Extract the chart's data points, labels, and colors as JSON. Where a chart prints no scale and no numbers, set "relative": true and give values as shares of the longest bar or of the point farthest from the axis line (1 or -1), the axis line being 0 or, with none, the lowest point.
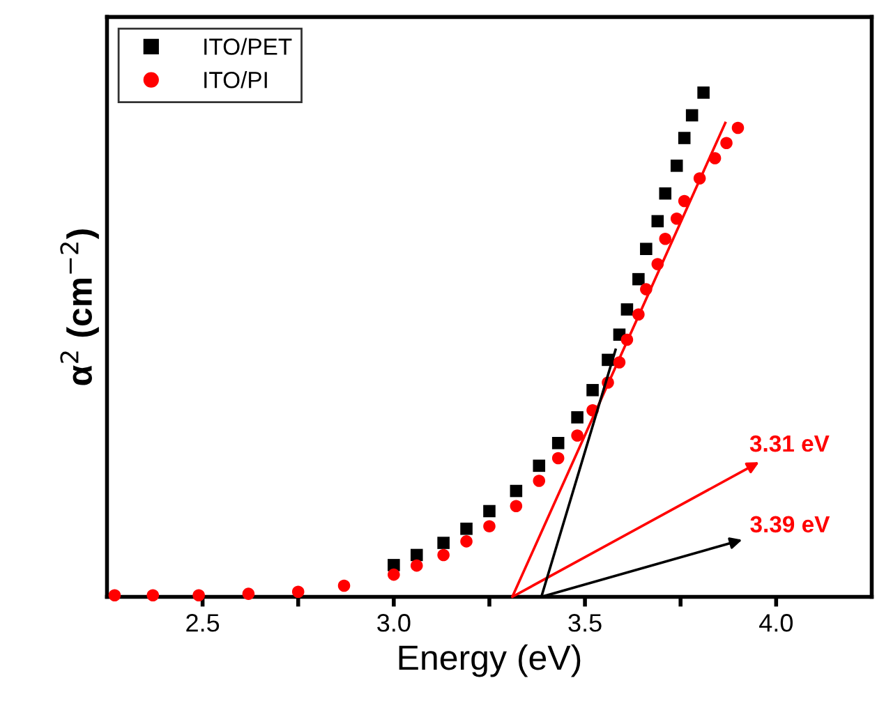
{
  "chart_data": {
    "type": "scatter",
    "xlabel": "Energy (eV)",
    "ylabel": "α$^{2}$ (cm$^{−2}$)",
    "relative": true,
    "xlim": [
      2.25,
      4.25
    ],
    "xticks": [
      {
        "value": 2.5,
        "label": "2.5"
      },
      {
        "value": 2.75,
        "label": null
      },
      {
        "value": 3.0,
        "label": "3.0"
      },
      {
        "value": 3.25,
        "label": null
      },
      {
        "value": 3.5,
        "label": "3.5"
      },
      {
        "value": 3.75,
        "label": null
      },
      {
        "value": 4.0,
        "label": "4.0"
      }
    ],
    "tick_labels": "x",
    "legend": "top left",
    "grid": false,
    "series": [
      {
        "name": "ITO/PET",
        "color": "#000000",
        "marker": "square",
        "x": [
          3.0,
          3.06,
          3.13,
          3.19,
          3.25,
          3.32,
          3.38,
          3.43,
          3.48,
          3.52,
          3.56,
          3.59,
          3.61,
          3.64,
          3.66,
          3.69,
          3.71,
          3.74,
          3.76,
          3.78,
          3.81
        ],
        "values": [
          0.063,
          0.083,
          0.107,
          0.135,
          0.17,
          0.21,
          0.26,
          0.305,
          0.356,
          0.41,
          0.47,
          0.52,
          0.57,
          0.63,
          0.69,
          0.745,
          0.8,
          0.855,
          0.91,
          0.955,
          1.0
        ]
      },
      {
        "name": "ITO/PI",
        "color": "#ff0000",
        "marker": "circle",
        "x": [
          2.27,
          2.37,
          2.49,
          2.62,
          2.75,
          2.87,
          3.0,
          3.06,
          3.13,
          3.19,
          3.25,
          3.32,
          3.38,
          3.43,
          3.48,
          3.52,
          3.56,
          3.59,
          3.61,
          3.64,
          3.66,
          3.69,
          3.71,
          3.74,
          3.76,
          3.8,
          3.84,
          3.87,
          3.9
        ],
        "values": [
          0.003,
          0.003,
          0.003,
          0.006,
          0.01,
          0.022,
          0.044,
          0.062,
          0.083,
          0.11,
          0.14,
          0.18,
          0.23,
          0.275,
          0.32,
          0.37,
          0.425,
          0.465,
          0.51,
          0.56,
          0.61,
          0.66,
          0.71,
          0.75,
          0.785,
          0.83,
          0.87,
          0.9,
          0.93
        ]
      },
      {
        "type": "line",
        "color": "#ff0000",
        "x": [
          3.31,
          3.867
        ],
        "values": [
          0.0,
          0.94
        ]
      },
      {
        "type": "line",
        "color": "#000000",
        "x": [
          3.386,
          3.58
        ],
        "values": [
          0.0,
          0.49
        ]
      }
    ],
    "annotations": [
      {
        "text": "3.31 eV",
        "x": 3.31,
        "y": 0.0
      },
      {
        "text": "3.39 eV",
        "x": 3.386,
        "y": 0.0
      }
    ]
  }
}
